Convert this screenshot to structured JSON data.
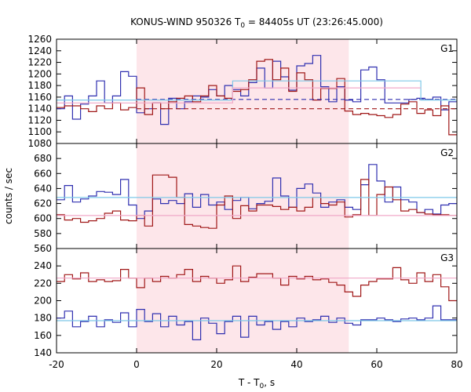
{
  "chart_data": {
    "type": "line",
    "title_main": "KONUS-WIND 950326 T",
    "title_sub": "0",
    "title_rest": " = 84405s UT (23:26:45.000)",
    "xlabel_main": "T - T",
    "xlabel_sub": "0",
    "xlabel_rest": ", s",
    "ylabel": "counts / sec",
    "xlim": [
      -20,
      80
    ],
    "x_ticks": [
      "-20",
      "0",
      "20",
      "40",
      "60",
      "80"
    ],
    "highlight_interval": [
      0,
      53
    ],
    "colors": {
      "blue": "#3030b0",
      "red": "#a01818",
      "cyan": "#7ec8e8",
      "pink": "#f0a8c8",
      "shade": "#fde6ea"
    },
    "panels": [
      {
        "label": "G1",
        "ylim": [
          1080,
          1260
        ],
        "y_ticks": [
          "1080",
          "1100",
          "1120",
          "1140",
          "1160",
          "1180",
          "1200",
          "1220",
          "1240",
          "1260"
        ],
        "series": [
          {
            "color": "blue",
            "x": [
              -20,
              -18,
              -16,
              -14,
              -12,
              -10,
              -8,
              -6,
              -4,
              -2,
              0,
              2,
              4,
              6,
              8,
              10,
              12,
              14,
              16,
              18,
              20,
              22,
              24,
              26,
              28,
              30,
              32,
              34,
              36,
              38,
              40,
              42,
              44,
              46,
              48,
              50,
              52,
              54,
              56,
              58,
              60,
              62,
              64,
              66,
              68,
              70,
              72,
              74,
              76,
              78,
              80
            ],
            "y": [
              1140,
              1162,
              1122,
              1148,
              1162,
              1188,
              1150,
              1162,
              1204,
              1196,
              1133,
              1140,
              1150,
              1113,
              1158,
              1140,
              1152,
              1162,
              1160,
              1173,
              1162,
              1180,
              1173,
              1162,
              1185,
              1210,
              1176,
              1222,
              1195,
              1172,
              1214,
              1218,
              1232,
              1178,
              1152,
              1178,
              1155,
              1152,
              1207,
              1212,
              1190,
              1150,
              1150,
              1150,
              1156,
              1158,
              1156,
              1160,
              1138,
              1152,
              1152
            ]
          },
          {
            "color": "red",
            "x": [
              -20,
              -18,
              -16,
              -14,
              -12,
              -10,
              -8,
              -6,
              -4,
              -2,
              0,
              2,
              4,
              6,
              8,
              10,
              12,
              14,
              16,
              18,
              20,
              22,
              24,
              26,
              28,
              30,
              32,
              34,
              36,
              38,
              40,
              42,
              44,
              46,
              48,
              50,
              52,
              54,
              56,
              58,
              60,
              62,
              64,
              66,
              68,
              70,
              72,
              74,
              76,
              78,
              80
            ],
            "y": [
              1142,
              1145,
              1145,
              1140,
              1135,
              1145,
              1140,
              1150,
              1138,
              1142,
              1176,
              1130,
              1150,
              1140,
              1152,
              1158,
              1162,
              1152,
              1162,
              1180,
              1162,
              1158,
              1170,
              1173,
              1190,
              1222,
              1225,
              1190,
              1210,
              1170,
              1202,
              1190,
              1155,
              1175,
              1175,
              1192,
              1136,
              1130,
              1132,
              1130,
              1128,
              1125,
              1130,
              1148,
              1152,
              1132,
              1138,
              1128,
              1145,
              1095,
              1095
            ]
          },
          {
            "color": "blue",
            "dashed": true,
            "x": [
              0,
              53,
              53,
              80
            ],
            "y": [
              1156,
              1156,
              1156,
              1156
            ]
          },
          {
            "color": "red",
            "dashed": true,
            "x": [
              0,
              53,
              53,
              80
            ],
            "y": [
              1140,
              1140,
              1140,
              1140
            ]
          },
          {
            "color": "cyan",
            "x": [
              -20,
              24,
              24,
              71,
              71,
              80
            ],
            "y": [
              1155,
              1155,
              1188,
              1188,
              1155,
              1155
            ]
          },
          {
            "color": "pink",
            "x": [
              -20,
              24,
              24,
              71
            ],
            "y": [
              1150,
              1150,
              1176,
              1176
            ]
          }
        ]
      },
      {
        "label": "G2",
        "ylim": [
          560,
          700
        ],
        "y_ticks": [
          "560",
          "580",
          "600",
          "620",
          "640",
          "660",
          "680"
        ],
        "series": [
          {
            "color": "blue",
            "x": [
              -20,
              -18,
              -16,
              -14,
              -12,
              -10,
              -8,
              -6,
              -4,
              -2,
              0,
              2,
              4,
              6,
              8,
              10,
              12,
              14,
              16,
              18,
              20,
              22,
              24,
              26,
              28,
              30,
              32,
              34,
              36,
              38,
              40,
              42,
              44,
              46,
              48,
              50,
              52,
              54,
              56,
              58,
              60,
              62,
              64,
              66,
              68,
              70,
              72,
              74,
              76,
              78,
              80
            ],
            "y": [
              625,
              644,
              622,
              626,
              630,
              636,
              635,
              632,
              652,
              618,
              600,
              610,
              626,
              620,
              624,
              620,
              633,
              615,
              632,
              618,
              622,
              612,
              624,
              628,
              613,
              620,
              623,
              654,
              630,
              615,
              640,
              646,
              634,
              615,
              622,
              625,
              615,
              612,
              645,
              672,
              650,
              622,
              642,
              625,
              622,
              608,
              612,
              606,
              618,
              620,
              620
            ]
          },
          {
            "color": "red",
            "x": [
              -20,
              -18,
              -16,
              -14,
              -12,
              -10,
              -8,
              -6,
              -4,
              -2,
              0,
              2,
              4,
              6,
              8,
              10,
              12,
              14,
              16,
              18,
              20,
              22,
              24,
              26,
              28,
              30,
              32,
              34,
              36,
              38,
              40,
              42,
              44,
              46,
              48,
              50,
              52,
              54,
              56,
              58,
              60,
              62,
              64,
              66,
              68,
              70,
              72,
              74,
              76,
              78,
              80
            ],
            "y": [
              605,
              598,
              600,
              595,
              597,
              600,
              607,
              610,
              598,
              597,
              604,
              590,
              658,
              658,
              655,
              628,
              592,
              590,
              588,
              587,
              618,
              630,
              600,
              617,
              610,
              618,
              618,
              616,
              612,
              615,
              610,
              615,
              628,
              620,
              618,
              622,
              602,
              605,
              652,
              604,
              632,
              642,
              625,
              610,
              612,
              608,
              606,
              605,
              605,
              604,
              604
            ]
          },
          {
            "color": "cyan",
            "x": [
              -20,
              80
            ],
            "y": [
              628,
              628
            ]
          },
          {
            "color": "pink",
            "x": [
              -20,
              80
            ],
            "y": [
              604,
              604
            ]
          }
        ]
      },
      {
        "label": "G3",
        "ylim": [
          140,
          260
        ],
        "y_ticks": [
          "140",
          "160",
          "180",
          "200",
          "220",
          "240"
        ],
        "series": [
          {
            "color": "red",
            "x": [
              -20,
              -18,
              -16,
              -14,
              -12,
              -10,
              -8,
              -6,
              -4,
              -2,
              0,
              2,
              4,
              6,
              8,
              10,
              12,
              14,
              16,
              18,
              20,
              22,
              24,
              26,
              28,
              30,
              32,
              34,
              36,
              38,
              40,
              42,
              44,
              46,
              48,
              50,
              52,
              54,
              56,
              58,
              60,
              62,
              64,
              66,
              68,
              70,
              72,
              74,
              76,
              78,
              80
            ],
            "y": [
              222,
              230,
              225,
              232,
              222,
              224,
              222,
              223,
              236,
              226,
              215,
              226,
              222,
              228,
              226,
              230,
              236,
              222,
              228,
              226,
              220,
              224,
              240,
              222,
              227,
              231,
              231,
              226,
              218,
              228,
              225,
              228,
              224,
              225,
              221,
              218,
              210,
              205,
              218,
              222,
              225,
              225,
              238,
              224,
              220,
              232,
              222,
              230,
              216,
              200,
              200
            ]
          },
          {
            "color": "blue",
            "x": [
              -20,
              -18,
              -16,
              -14,
              -12,
              -10,
              -8,
              -6,
              -4,
              -2,
              0,
              2,
              4,
              6,
              8,
              10,
              12,
              14,
              16,
              18,
              20,
              22,
              24,
              26,
              28,
              30,
              32,
              34,
              36,
              38,
              40,
              42,
              44,
              46,
              48,
              50,
              52,
              54,
              56,
              58,
              60,
              62,
              64,
              66,
              68,
              70,
              72,
              74,
              76,
              78,
              80
            ],
            "y": [
              180,
              188,
              170,
              176,
              182,
              170,
              178,
              175,
              186,
              170,
              190,
              176,
              185,
              170,
              182,
              172,
              176,
              155,
              180,
              174,
              162,
              176,
              182,
              158,
              182,
              172,
              176,
              167,
              176,
              170,
              180,
              176,
              178,
              182,
              175,
              180,
              174,
              172,
              178,
              178,
              180,
              178,
              176,
              179,
              180,
              178,
              180,
              194,
              178,
              178,
              178
            ]
          },
          {
            "color": "pink",
            "x": [
              -20,
              80
            ],
            "y": [
              226,
              226
            ]
          },
          {
            "color": "cyan",
            "x": [
              -20,
              80
            ],
            "y": [
              177,
              177
            ]
          }
        ]
      }
    ]
  }
}
